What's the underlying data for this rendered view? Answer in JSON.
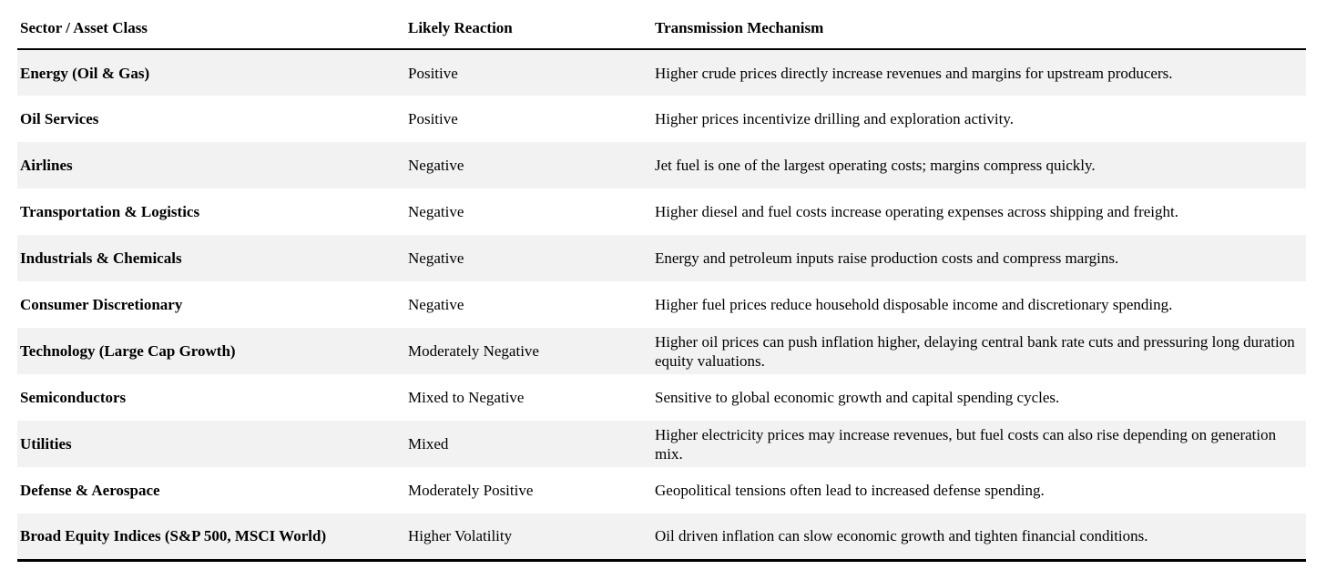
{
  "table": {
    "columns": [
      {
        "label": "Sector / Asset Class"
      },
      {
        "label": "Likely Reaction"
      },
      {
        "label": "Transmission Mechanism"
      }
    ],
    "rows": [
      {
        "sector": "Energy (Oil & Gas)",
        "reaction": "Positive",
        "mechanism": "Higher crude prices directly increase revenues and margins for upstream producers."
      },
      {
        "sector": "Oil Services",
        "reaction": "Positive",
        "mechanism": "Higher prices incentivize drilling and exploration activity."
      },
      {
        "sector": "Airlines",
        "reaction": "Negative",
        "mechanism": "Jet fuel is one of the largest operating costs; margins compress quickly."
      },
      {
        "sector": "Transportation & Logistics",
        "reaction": "Negative",
        "mechanism": "Higher diesel and fuel costs increase operating expenses across shipping and freight."
      },
      {
        "sector": "Industrials & Chemicals",
        "reaction": "Negative",
        "mechanism": "Energy and petroleum inputs raise production costs and compress margins."
      },
      {
        "sector": "Consumer Discretionary",
        "reaction": "Negative",
        "mechanism": "Higher fuel prices reduce household disposable income and discretionary spending."
      },
      {
        "sector": "Technology (Large Cap Growth)",
        "reaction": "Moderately Negative",
        "mechanism": "Higher oil prices can push inflation higher, delaying central bank rate cuts and pressuring long duration equity valuations."
      },
      {
        "sector": "Semiconductors",
        "reaction": "Mixed to Negative",
        "mechanism": "Sensitive to global economic growth and capital spending cycles."
      },
      {
        "sector": "Utilities",
        "reaction": "Mixed",
        "mechanism": "Higher electricity prices may increase revenues, but fuel costs can also rise depending on generation mix."
      },
      {
        "sector": "Defense & Aerospace",
        "reaction": "Moderately Positive",
        "mechanism": "Geopolitical tensions often lead to increased defense spending."
      },
      {
        "sector": "Broad Equity Indices (S&P 500, MSCI World)",
        "reaction": "Higher Volatility",
        "mechanism": "Oil driven inflation can slow economic growth and tighten financial conditions."
      }
    ],
    "colors": {
      "stripe": "#f2f2f2",
      "text": "#000000",
      "border": "#000000",
      "background": "#ffffff"
    }
  }
}
